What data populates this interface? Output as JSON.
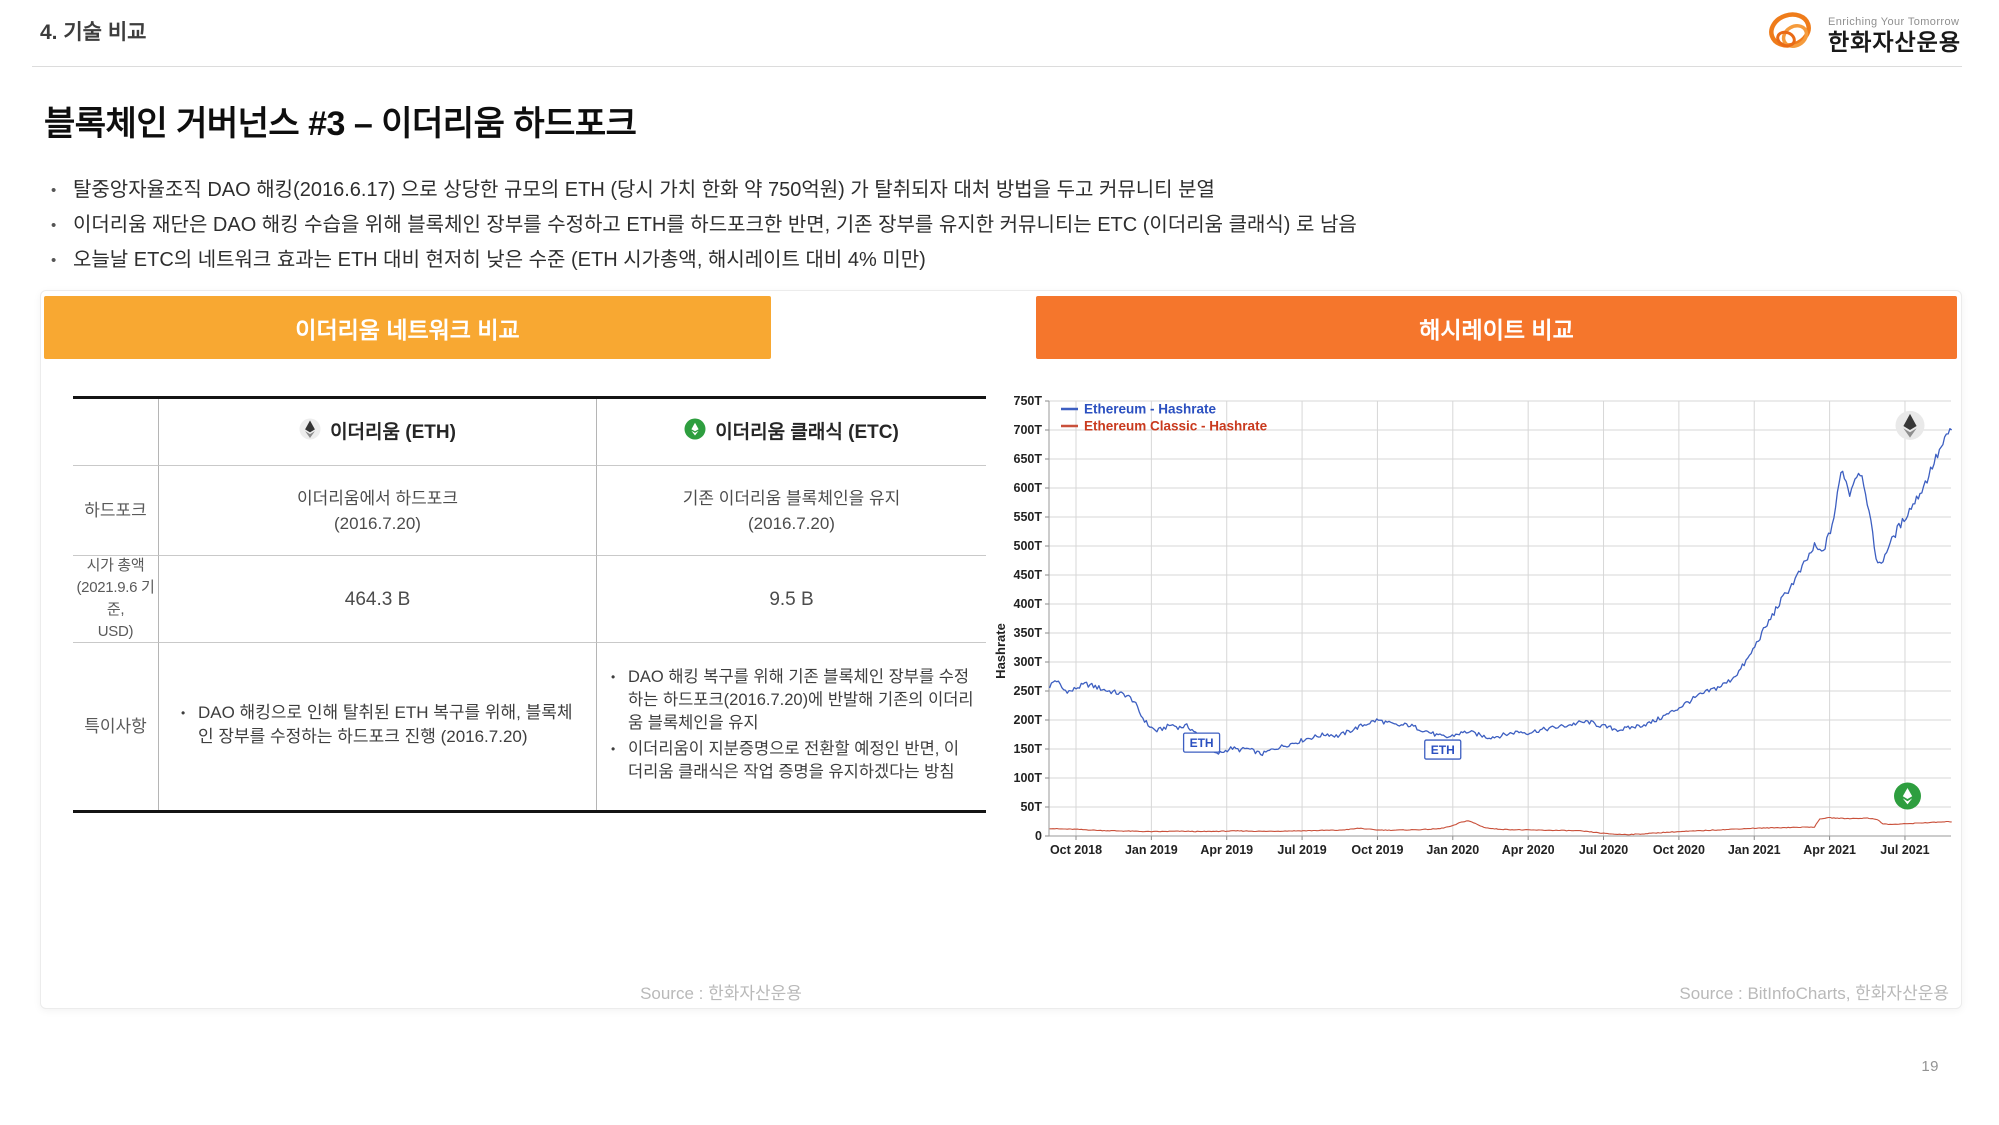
{
  "page": {
    "section": "4. 기술 비교",
    "page_number": "19"
  },
  "logo": {
    "tagline": "Enriching Your Tomorrow",
    "company": "한화자산운용"
  },
  "title": "블록체인 거버넌스 #3 – 이더리움 하드포크",
  "bullets": [
    "탈중앙자율조직 DAO 해킹(2016.6.17) 으로 상당한 규모의 ETH (당시 가치 한화 약 750억원) 가 탈취되자 대처 방법을 두고 커뮤니티 분열",
    "이더리움 재단은 DAO 해킹 수습을 위해 블록체인 장부를 수정하고 ETH를 하드포크한 반면, 기존 장부를 유지한 커뮤니티는 ETC (이더리움 클래식) 로 남음",
    "오늘날 ETC의 네트워크 효과는 ETH 대비 현저히 낮은 수준 (ETH 시가총액, 해시레이트 대비 4% 미만)"
  ],
  "left_panel": {
    "header": "이더리움 네트워크 비교",
    "header_color": "#F8A832",
    "table": {
      "col_headers": [
        {
          "icon": "eth-icon",
          "label": "이더리움 (ETH)"
        },
        {
          "icon": "etc-icon",
          "label": "이더리움 클래식 (ETC)"
        }
      ],
      "rows": [
        {
          "label": "하드포크",
          "eth": [
            "이더리움에서 하드포크",
            "(2016.7.20)"
          ],
          "etc": [
            "기존 이더리움 블록체인을 유지",
            "(2016.7.20)"
          ]
        },
        {
          "label": [
            "시가 총액",
            "(2021.9.6 기준,",
            "USD)"
          ],
          "eth": "464.3 B",
          "etc": "9.5 B"
        },
        {
          "label": "특이사항",
          "eth_bullets": [
            "DAO 해킹으로 인해 탈취된 ETH 복구를 위해, 블록체인 장부를 수정하는 하드포크 진행 (2016.7.20)"
          ],
          "etc_bullets": [
            "DAO 해킹 복구를 위해 기존 블록체인 장부를 수정하는 하드포크(2016.7.20)에 반발해 기존의 이더리움 블록체인을 유지",
            "이더리움이 지분증명으로 전환할 예정인 반면, 이더리움 클래식은 작업 증명을 유지하겠다는 방침"
          ]
        }
      ]
    },
    "source": "Source : 한화자산운용"
  },
  "right_panel": {
    "header": "해시레이트 비교",
    "header_color": "#F5762C",
    "source": "Source : BitInfoCharts, 한화자산운용"
  },
  "chart_data": {
    "type": "line",
    "title": "해시레이트 비교",
    "ylabel": "Hashrate",
    "ylim": [
      0,
      750
    ],
    "y_tick_step": 50,
    "y_tick_suffix": "T",
    "x_tick_labels": [
      "Oct 2018",
      "Jan 2019",
      "Apr 2019",
      "Jul 2019",
      "Oct 2019",
      "Jan 2020",
      "Apr 2020",
      "Jul 2020",
      "Oct 2020",
      "Jan 2021",
      "Apr 2021",
      "Jul 2021"
    ],
    "x_tick_step_months": 3,
    "x_range_months": [
      -1.05,
      34.86
    ],
    "grid": true,
    "legend_position": "top-left",
    "series": [
      {
        "name": "Ethereum - Hashrate",
        "unit": "T",
        "color": "#3D5FC1",
        "legend_color": "#2B50C0",
        "anchors": [
          [
            -1.05,
            258
          ],
          [
            -0.8,
            270
          ],
          [
            -0.5,
            252
          ],
          [
            -0.2,
            249
          ],
          [
            0,
            255
          ],
          [
            0.4,
            262
          ],
          [
            0.8,
            257
          ],
          [
            1.2,
            251
          ],
          [
            1.6,
            247
          ],
          [
            2,
            243
          ],
          [
            2.3,
            233
          ],
          [
            2.6,
            207
          ],
          [
            2.9,
            190
          ],
          [
            3.2,
            181
          ],
          [
            3.5,
            186
          ],
          [
            3.8,
            192
          ],
          [
            4.1,
            187
          ],
          [
            4.4,
            190
          ],
          [
            4.7,
            181
          ],
          [
            5,
            166
          ],
          [
            5.3,
            149
          ],
          [
            5.6,
            141
          ],
          [
            5.9,
            146
          ],
          [
            6.2,
            152
          ],
          [
            6.5,
            148
          ],
          [
            6.8,
            151
          ],
          [
            7.1,
            146
          ],
          [
            7.4,
            141
          ],
          [
            7.7,
            147
          ],
          [
            8,
            152
          ],
          [
            8.4,
            157
          ],
          [
            8.8,
            162
          ],
          [
            9.2,
            168
          ],
          [
            9.6,
            172
          ],
          [
            10,
            176
          ],
          [
            10.4,
            172
          ],
          [
            10.8,
            179
          ],
          [
            11.2,
            187
          ],
          [
            11.6,
            194
          ],
          [
            12,
            200
          ],
          [
            12.4,
            195
          ],
          [
            12.8,
            190
          ],
          [
            13.2,
            192
          ],
          [
            13.6,
            186
          ],
          [
            14,
            180
          ],
          [
            14.4,
            173
          ],
          [
            14.8,
            170
          ],
          [
            15.2,
            176
          ],
          [
            15.6,
            180
          ],
          [
            16,
            175
          ],
          [
            16.4,
            170
          ],
          [
            16.8,
            172
          ],
          [
            17.2,
            176
          ],
          [
            17.6,
            180
          ],
          [
            18,
            178
          ],
          [
            18.4,
            182
          ],
          [
            18.8,
            185
          ],
          [
            19.2,
            188
          ],
          [
            19.6,
            191
          ],
          [
            20,
            195
          ],
          [
            20.4,
            197
          ],
          [
            20.8,
            191
          ],
          [
            21.2,
            187
          ],
          [
            21.6,
            183
          ],
          [
            22,
            186
          ],
          [
            22.4,
            190
          ],
          [
            22.8,
            194
          ],
          [
            23.2,
            202
          ],
          [
            23.6,
            211
          ],
          [
            24,
            221
          ],
          [
            24.4,
            232
          ],
          [
            24.8,
            242
          ],
          [
            25.2,
            250
          ],
          [
            25.6,
            257
          ],
          [
            26,
            267
          ],
          [
            26.4,
            284
          ],
          [
            26.8,
            309
          ],
          [
            27.2,
            341
          ],
          [
            27.6,
            371
          ],
          [
            28,
            401
          ],
          [
            28.4,
            427
          ],
          [
            28.8,
            454
          ],
          [
            29.1,
            477
          ],
          [
            29.4,
            499
          ],
          [
            29.7,
            487
          ],
          [
            30,
            521
          ],
          [
            30.2,
            555
          ],
          [
            30.35,
            599
          ],
          [
            30.5,
            637
          ],
          [
            30.65,
            611
          ],
          [
            30.8,
            591
          ],
          [
            31,
            617
          ],
          [
            31.2,
            631
          ],
          [
            31.4,
            604
          ],
          [
            31.6,
            549
          ],
          [
            31.8,
            494
          ],
          [
            31.95,
            464
          ],
          [
            32.1,
            474
          ],
          [
            32.3,
            496
          ],
          [
            32.5,
            511
          ],
          [
            32.7,
            529
          ],
          [
            32.9,
            541
          ],
          [
            33.1,
            557
          ],
          [
            33.4,
            577
          ],
          [
            33.7,
            599
          ],
          [
            33.9,
            617
          ],
          [
            34.1,
            639
          ],
          [
            34.3,
            657
          ],
          [
            34.5,
            674
          ],
          [
            34.7,
            691
          ],
          [
            34.86,
            703
          ]
        ]
      },
      {
        "name": "Ethereum Classic - Hashrate",
        "unit": "T",
        "color": "#C9503A",
        "legend_color": "#C93A1E",
        "anchors": [
          [
            -1.05,
            13
          ],
          [
            -0.5,
            12
          ],
          [
            0,
            11.5
          ],
          [
            0.5,
            10.5
          ],
          [
            1,
            9.5
          ],
          [
            1.5,
            9
          ],
          [
            2,
            8.5
          ],
          [
            2.5,
            8
          ],
          [
            3,
            7.5
          ],
          [
            3.5,
            7.8
          ],
          [
            4,
            8.2
          ],
          [
            4.5,
            8
          ],
          [
            5,
            7.6
          ],
          [
            5.5,
            8
          ],
          [
            6,
            8.4
          ],
          [
            6.5,
            8.8
          ],
          [
            7,
            8.4
          ],
          [
            7.5,
            8
          ],
          [
            8,
            8.4
          ],
          [
            8.5,
            8.8
          ],
          [
            9,
            9
          ],
          [
            9.5,
            9.4
          ],
          [
            10,
            9.8
          ],
          [
            10.5,
            10
          ],
          [
            11,
            12
          ],
          [
            11.3,
            13.5
          ],
          [
            11.6,
            11.8
          ],
          [
            12,
            10.4
          ],
          [
            12.5,
            10
          ],
          [
            13,
            10.4
          ],
          [
            13.5,
            10.8
          ],
          [
            14,
            11.4
          ],
          [
            14.5,
            12.8
          ],
          [
            15,
            17.5
          ],
          [
            15.3,
            23.5
          ],
          [
            15.6,
            26.5
          ],
          [
            15.9,
            21.5
          ],
          [
            16.2,
            15.5
          ],
          [
            16.5,
            12.8
          ],
          [
            17,
            11.4
          ],
          [
            17.5,
            10.8
          ],
          [
            18,
            10.4
          ],
          [
            18.5,
            10
          ],
          [
            19,
            9.8
          ],
          [
            19.5,
            9.4
          ],
          [
            20,
            9
          ],
          [
            20.5,
            7
          ],
          [
            21,
            4.5
          ],
          [
            21.5,
            3
          ],
          [
            22,
            2.6
          ],
          [
            22.5,
            3.4
          ],
          [
            23,
            5
          ],
          [
            23.5,
            6.4
          ],
          [
            24,
            7.4
          ],
          [
            24.5,
            8.4
          ],
          [
            25,
            9.4
          ],
          [
            25.5,
            10.4
          ],
          [
            26,
            11.4
          ],
          [
            26.5,
            12.4
          ],
          [
            27,
            13.4
          ],
          [
            27.5,
            13.8
          ],
          [
            28,
            14.4
          ],
          [
            28.5,
            14.8
          ],
          [
            29,
            15.2
          ],
          [
            29.4,
            15.6
          ],
          [
            29.6,
            29
          ],
          [
            29.9,
            31.5
          ],
          [
            30.3,
            30.8
          ],
          [
            30.7,
            30
          ],
          [
            31.1,
            30.4
          ],
          [
            31.5,
            30.8
          ],
          [
            31.9,
            28.8
          ],
          [
            32.1,
            21
          ],
          [
            32.4,
            20
          ],
          [
            32.8,
            20.5
          ],
          [
            33.2,
            21.5
          ],
          [
            33.6,
            22.5
          ],
          [
            34,
            23.2
          ],
          [
            34.4,
            24
          ],
          [
            34.86,
            24.8
          ]
        ]
      }
    ],
    "annotations": [
      {
        "text": "ETH",
        "month": 5.0,
        "value": 161
      },
      {
        "text": "ETH",
        "month": 14.6,
        "value": 149
      }
    ],
    "icons": [
      {
        "type": "eth-icon",
        "month": 33.2,
        "value": 708
      },
      {
        "type": "etc-icon",
        "month": 33.1,
        "value": 69
      }
    ]
  }
}
